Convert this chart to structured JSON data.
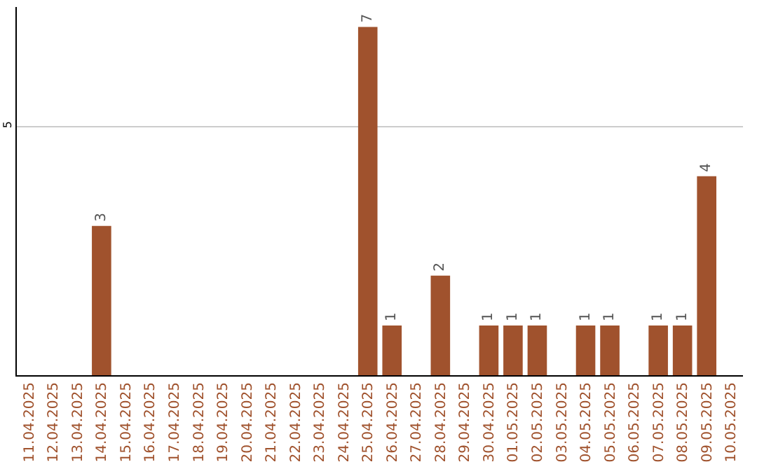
{
  "chart_data": {
    "type": "bar",
    "categories": [
      "11.04.2025",
      "12.04.2025",
      "13.04.2025",
      "14.04.2025",
      "15.04.2025",
      "16.04.2025",
      "17.04.2025",
      "18.04.2025",
      "19.04.2025",
      "20.04.2025",
      "21.04.2025",
      "22.04.2025",
      "23.04.2025",
      "24.04.2025",
      "25.04.2025",
      "26.04.2025",
      "27.04.2025",
      "28.04.2025",
      "29.04.2025",
      "30.04.2025",
      "01.05.2025",
      "02.05.2025",
      "03.05.2025",
      "04.05.2025",
      "05.05.2025",
      "06.05.2025",
      "07.05.2025",
      "08.05.2025",
      "09.05.2025",
      "10.05.2025"
    ],
    "values": [
      0,
      0,
      0,
      3,
      0,
      0,
      0,
      0,
      0,
      0,
      0,
      0,
      0,
      0,
      7,
      1,
      0,
      2,
      0,
      1,
      1,
      1,
      0,
      1,
      1,
      0,
      1,
      1,
      4,
      0
    ],
    "value_labels": [
      null,
      null,
      null,
      "3",
      null,
      null,
      null,
      null,
      null,
      null,
      null,
      null,
      null,
      null,
      "7",
      "1",
      null,
      "2",
      null,
      "1",
      "1",
      "1",
      null,
      "1",
      "1",
      null,
      "1",
      "1",
      "4",
      null
    ],
    "color": "#a0522d",
    "ylim": [
      0,
      7.4
    ],
    "yticks": [
      5
    ],
    "grid": "y"
  }
}
